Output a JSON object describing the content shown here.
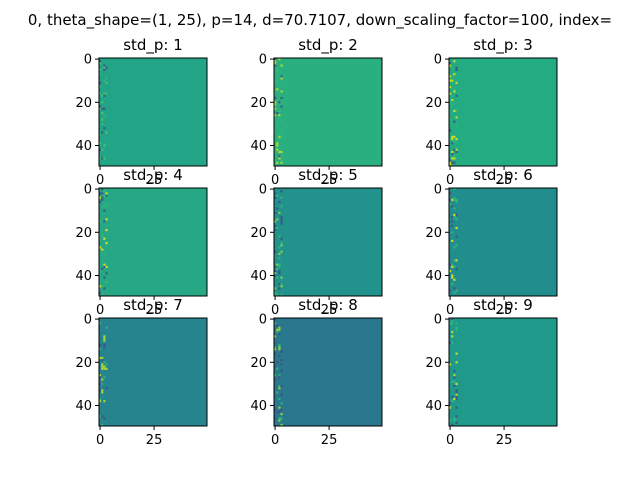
{
  "figure": {
    "suptitle": "0, theta_shape=(1, 25), p=14, d=70.7107, down_scaling_factor=100, index="
  },
  "chart_data": {
    "type": "heatmap",
    "layout": "3x3 grid",
    "colormap": "viridis",
    "x_ticks": [
      0,
      25
    ],
    "y_ticks": [
      0,
      20,
      40
    ],
    "panels": [
      {
        "title": "std_p: 1",
        "base_color": "#22a486",
        "stripe_color": "#52c569"
      },
      {
        "title": "std_p: 2",
        "base_color": "#29b07e",
        "stripe_color": "#bede28"
      },
      {
        "title": "std_p: 3",
        "base_color": "#23ab82",
        "stripe_color": "#d9e21a"
      },
      {
        "title": "std_p: 4",
        "base_color": "#26a884",
        "stripe_color": "#e6e419"
      },
      {
        "title": "std_p: 5",
        "base_color": "#21928c",
        "stripe_color": "#95d840"
      },
      {
        "title": "std_p: 6",
        "base_color": "#218e8d",
        "stripe_color": "#e6e419"
      },
      {
        "title": "std_p: 7",
        "base_color": "#25848e",
        "stripe_color": "#b8de29"
      },
      {
        "title": "std_p: 8",
        "base_color": "#2a788e",
        "stripe_color": "#a2da37"
      },
      {
        "title": "std_p: 9",
        "base_color": "#1f9a8a",
        "stripe_color": "#d8e219"
      }
    ]
  }
}
